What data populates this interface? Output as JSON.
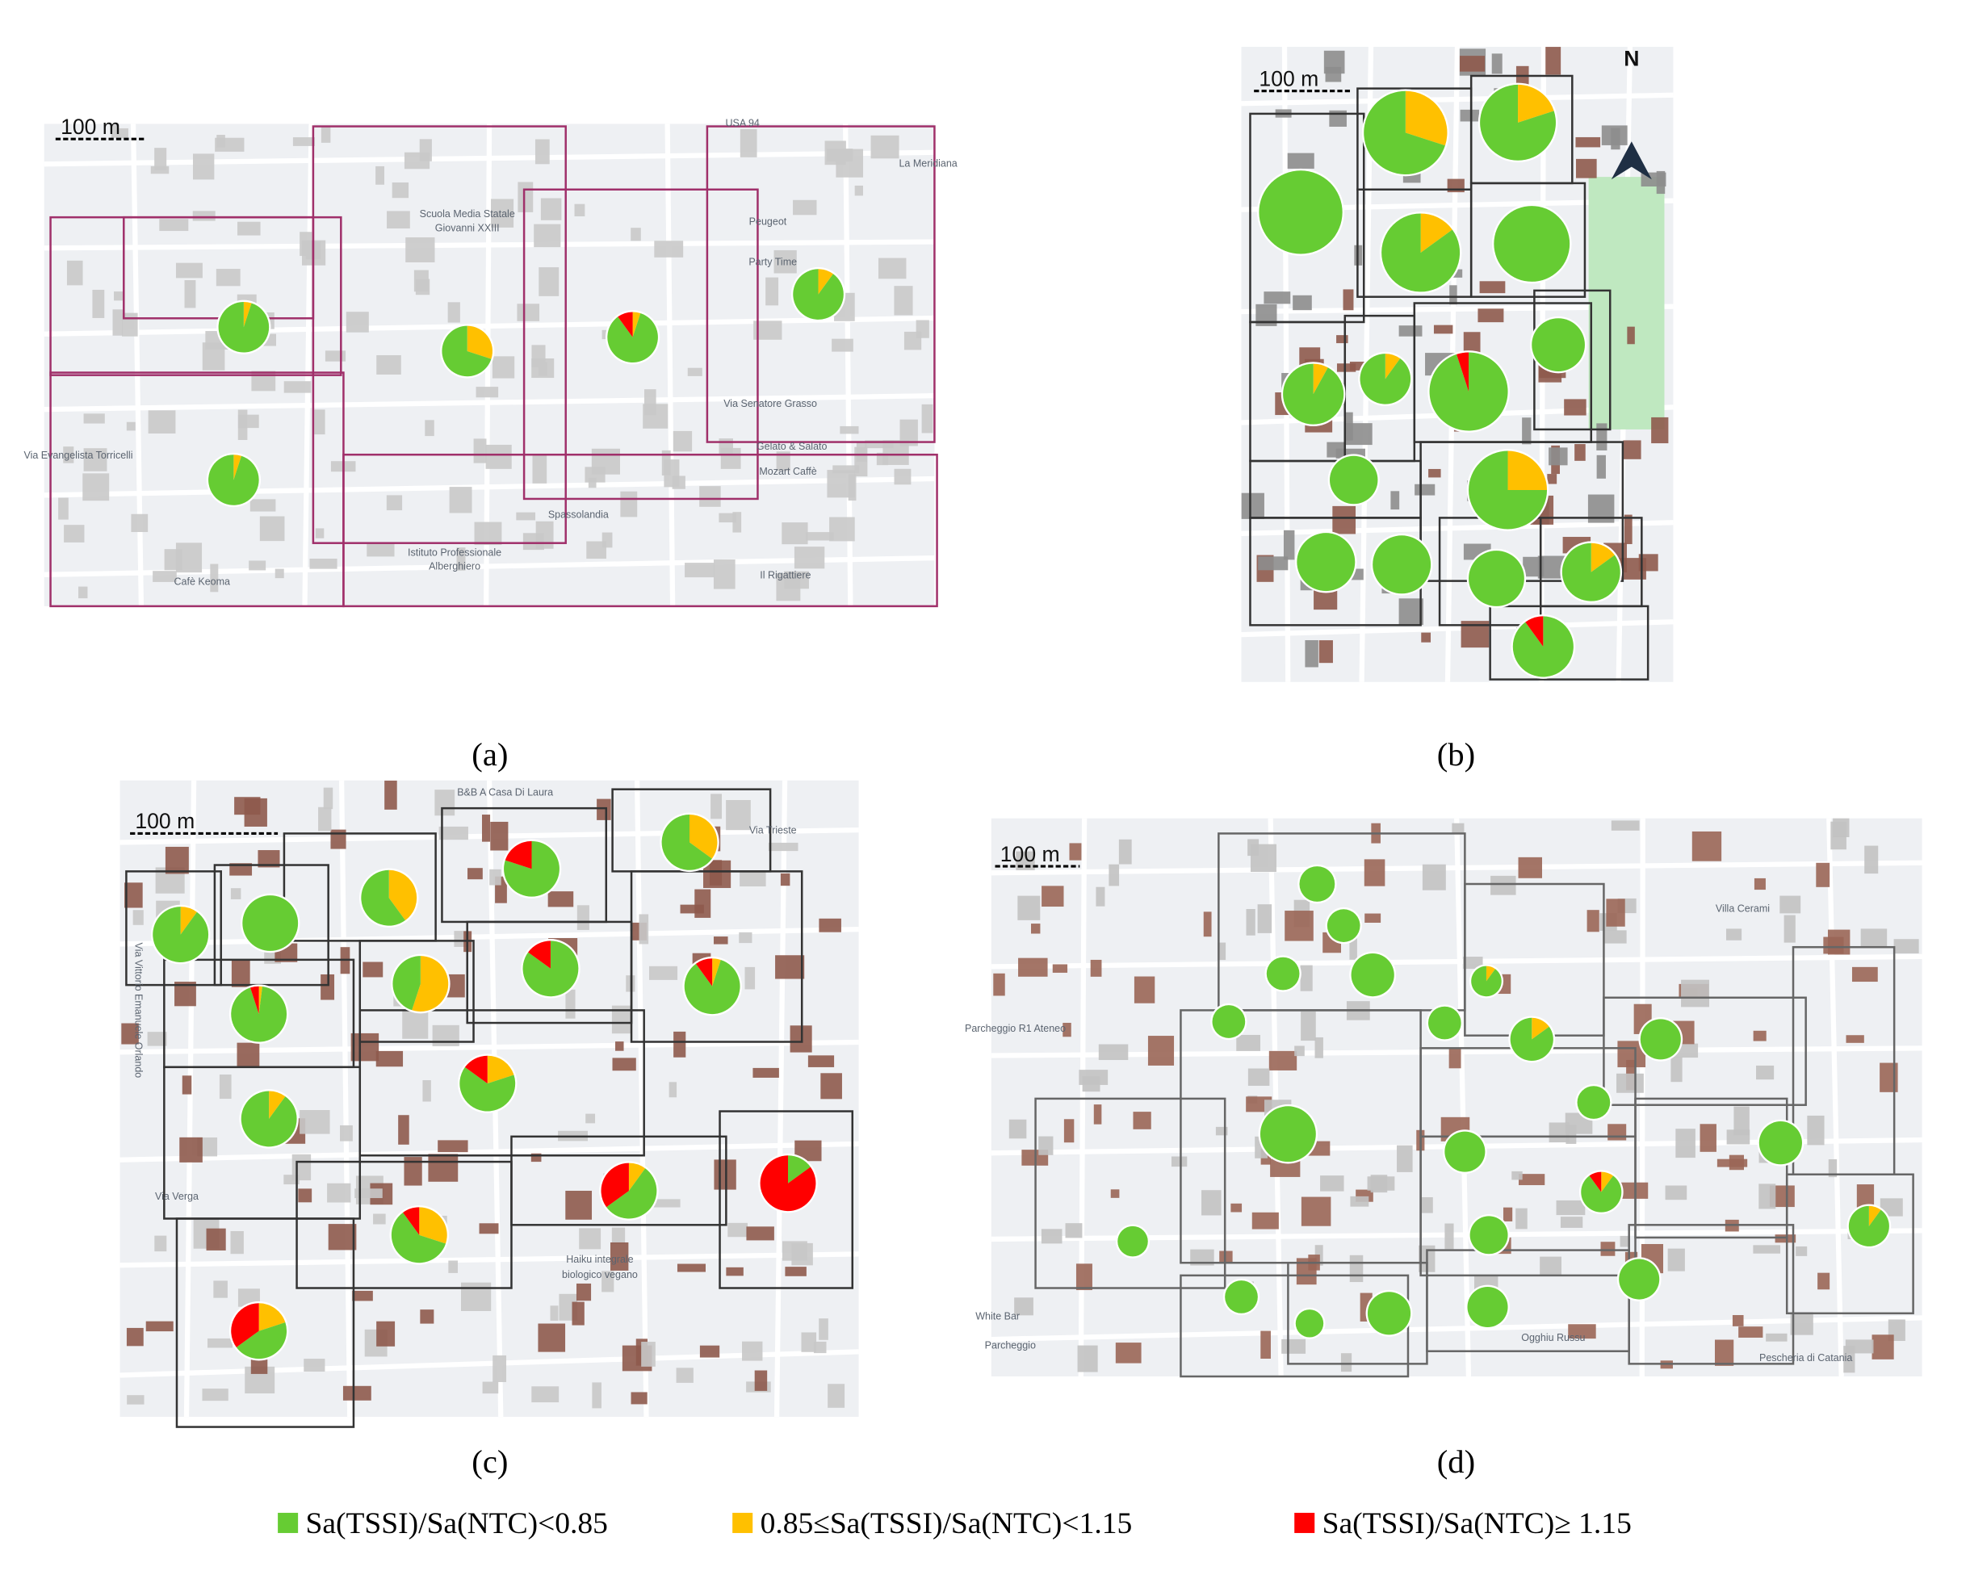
{
  "panels": [
    {
      "caption": "(a)",
      "scale_label": "100 m",
      "labels": [
        "Scuola Media Statale",
        "Giovanni XXIII",
        "Peugeot",
        "Party Time",
        "Spassolandia",
        "Istituto Professionale",
        "Alberghiero",
        "Il Rigattiere",
        "Mozart Caffè",
        "Gelato & Salato",
        "Cafè Keoma",
        "La Meridiana",
        "Via Evangelista Torricelli",
        "Via Senatore Grasso",
        "USA 94"
      ],
      "pies": [
        [
          0.95,
          0.05,
          0
        ],
        [
          0.7,
          0.3,
          0
        ],
        [
          0.85,
          0.05,
          0.1
        ],
        [
          0.9,
          0.1,
          0
        ],
        [
          0.95,
          0.05,
          0
        ]
      ]
    },
    {
      "caption": "(b)",
      "scale_label": "100 m",
      "labels": [
        "N"
      ],
      "pies": [
        [
          0.7,
          0.3,
          0
        ],
        [
          0.8,
          0.2,
          0
        ],
        [
          1,
          0,
          0
        ],
        [
          0.85,
          0.15,
          0
        ],
        [
          1,
          0,
          0
        ],
        [
          1,
          0,
          0
        ],
        [
          0.92,
          0.08,
          0
        ],
        [
          0.9,
          0.1,
          0
        ],
        [
          0.95,
          0,
          0.05
        ],
        [
          1,
          0,
          0
        ],
        [
          0.75,
          0.25,
          0
        ],
        [
          1,
          0,
          0
        ],
        [
          1,
          0,
          0
        ],
        [
          1,
          0,
          0
        ],
        [
          0.85,
          0.15,
          0
        ],
        [
          0.9,
          0,
          0.1
        ]
      ]
    },
    {
      "caption": "(c)",
      "scale_label": "100 m",
      "labels": [
        "B&B A Casa Di Laura",
        "Via Trieste",
        "Haiku integrale",
        "biologico vegano",
        "Via Vittorio Emanuele Orlando",
        "Via Verga"
      ],
      "pies": [
        [
          0.9,
          0.1,
          0
        ],
        [
          1,
          0,
          0
        ],
        [
          0.6,
          0.4,
          0
        ],
        [
          0.8,
          0,
          0.2
        ],
        [
          0.65,
          0.35,
          0
        ],
        [
          0.93,
          0.02,
          0.05
        ],
        [
          0.45,
          0.55,
          0
        ],
        [
          0.85,
          0,
          0.15
        ],
        [
          0.85,
          0.05,
          0.1
        ],
        [
          0.9,
          0.1,
          0
        ],
        [
          0.65,
          0.2,
          0.15
        ],
        [
          0.55,
          0.1,
          0.35
        ],
        [
          0.15,
          0,
          0.85
        ],
        [
          0.6,
          0.3,
          0.1
        ],
        [
          0.45,
          0.2,
          0.35
        ]
      ]
    },
    {
      "caption": "(d)",
      "scale_label": "100 m",
      "labels": [
        "Villa Cerami",
        "Parcheggio R1 Ateneo",
        "White Bar",
        "Parcheggio",
        "Pescheria di Catania",
        "Ogghiu Russu"
      ],
      "pies": [
        [
          1,
          0,
          0
        ],
        [
          1,
          0,
          0
        ],
        [
          1,
          0,
          0
        ],
        [
          1,
          0,
          0
        ],
        [
          0.9,
          0.1,
          0
        ],
        [
          1,
          0,
          0
        ],
        [
          1,
          0,
          0
        ],
        [
          0.85,
          0.15,
          0
        ],
        [
          1,
          0,
          0
        ],
        [
          1,
          0,
          0
        ],
        [
          1,
          0,
          0
        ],
        [
          1,
          0,
          0
        ],
        [
          1,
          0,
          0
        ],
        [
          0.8,
          0.1,
          0.1
        ],
        [
          0.9,
          0.1,
          0
        ],
        [
          1,
          0,
          0
        ],
        [
          1,
          0,
          0
        ],
        [
          1,
          0,
          0
        ],
        [
          1,
          0,
          0
        ],
        [
          1,
          0,
          0
        ],
        [
          1,
          0,
          0
        ],
        [
          1,
          0,
          0
        ]
      ]
    }
  ],
  "legend": [
    {
      "label": "Sa(TSSI)/Sa(NTC)<0.85",
      "color": "#66cc33"
    },
    {
      "label": "0.85≤Sa(TSSI)/Sa(NTC)<1.15",
      "color": "#ffc000"
    },
    {
      "label": "Sa(TSSI)/Sa(NTC)≥ 1.15",
      "color": "#ff0000"
    }
  ]
}
